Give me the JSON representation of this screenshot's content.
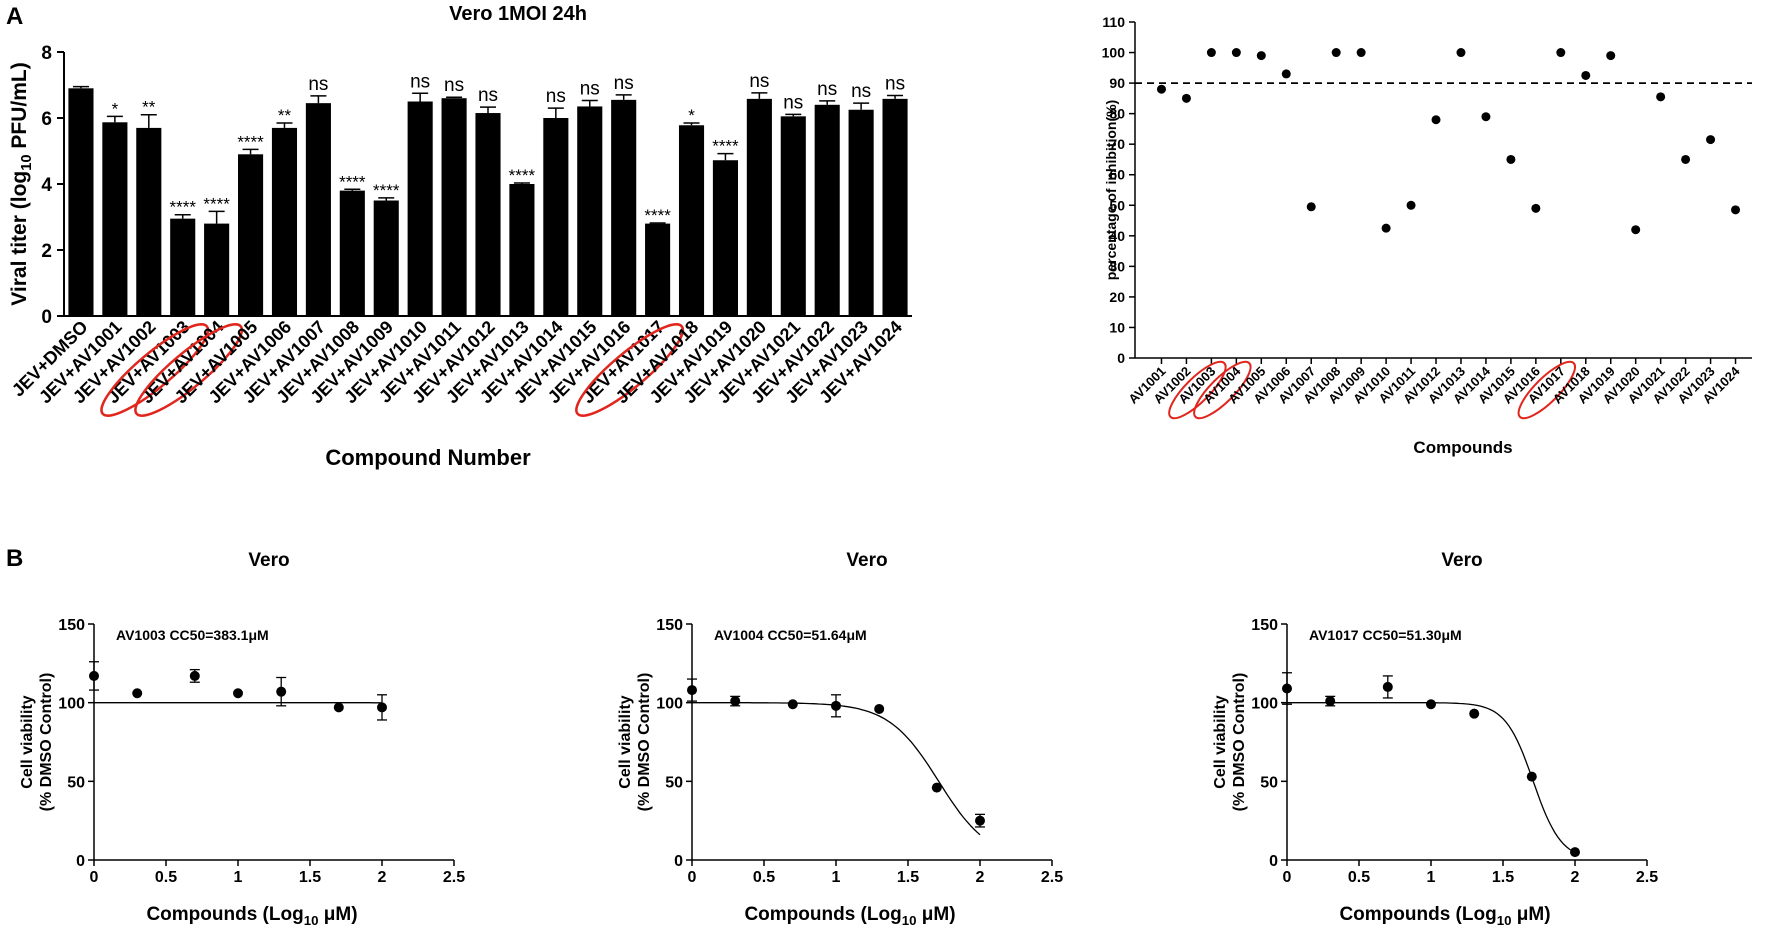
{
  "panel_labels": {
    "a": "A",
    "b": "B"
  },
  "colors": {
    "ink": "#000000",
    "highlight": "#e0261d",
    "bar": "#000000"
  },
  "chart_data": [
    {
      "id": "titer",
      "type": "bar",
      "title": "Vero  1MOI  24h",
      "xlabel": "Compound Number",
      "ylabel_main": "Viral titer (log",
      "ylabel_sub": "10",
      "ylabel_tail": " PFU/mL)",
      "ylim": [
        0,
        8
      ],
      "yticks": [
        0,
        2,
        4,
        6,
        8
      ],
      "categories": [
        "JEV+DMSO",
        "JEV+AV1001",
        "JEV+AV1002",
        "JEV+AV1003",
        "JEV+AV1004",
        "JEV+AV1005",
        "JEV+AV1006",
        "JEV+AV1007",
        "JEV+AV1008",
        "JEV+AV1009",
        "JEV+AV1010",
        "JEV+AV1011",
        "JEV+AV1012",
        "JEV+AV1013",
        "JEV+AV1014",
        "JEV+AV1015",
        "JEV+AV1016",
        "JEV+AV1017",
        "JEV+AV1018",
        "JEV+AV1019",
        "JEV+AV1020",
        "JEV+AV1021",
        "JEV+AV1022",
        "JEV+AV1023",
        "JEV+AV1024"
      ],
      "values": [
        6.9,
        5.87,
        5.7,
        2.95,
        2.8,
        4.9,
        5.7,
        6.45,
        3.8,
        3.5,
        6.5,
        6.6,
        6.15,
        4.0,
        6.0,
        6.35,
        6.55,
        2.8,
        5.78,
        4.72,
        6.58,
        6.05,
        6.4,
        6.25,
        6.58
      ],
      "errors": [
        0.05,
        0.18,
        0.4,
        0.12,
        0.37,
        0.15,
        0.15,
        0.22,
        0.04,
        0.08,
        0.25,
        0.03,
        0.18,
        0.03,
        0.3,
        0.18,
        0.15,
        0.02,
        0.07,
        0.2,
        0.18,
        0.06,
        0.12,
        0.2,
        0.1
      ],
      "significance": [
        "",
        "*",
        "**",
        "****",
        "****",
        "****",
        "**",
        "ns",
        "****",
        "****",
        "ns",
        "ns",
        "ns",
        "****",
        "ns",
        "ns",
        "ns",
        "****",
        "*",
        "****",
        "ns",
        "ns",
        "ns",
        "ns",
        "ns"
      ],
      "highlighted": [
        "JEV+AV1003",
        "JEV+AV1004",
        "JEV+AV1017"
      ]
    },
    {
      "id": "inhibition",
      "type": "scatter",
      "title": "",
      "xlabel": "Compounds",
      "ylabel": "percentage of inhibition(%)",
      "ylim": [
        0,
        110
      ],
      "yticks": [
        0,
        10,
        20,
        30,
        40,
        50,
        60,
        70,
        80,
        90,
        100,
        110
      ],
      "threshold": 90,
      "categories": [
        "AV1001",
        "AV1002",
        "AV1003",
        "AV1004",
        "AV1005",
        "AV1006",
        "AV1007",
        "AV1008",
        "AV1009",
        "AV1010",
        "AV1011",
        "AV1012",
        "AV1013",
        "AV1014",
        "AV1015",
        "AV1016",
        "AV1017",
        "AV1018",
        "AV1019",
        "AV1020",
        "AV1021",
        "AV1022",
        "AV1023",
        "AV1024"
      ],
      "values": [
        88,
        85,
        100,
        100,
        99,
        93,
        49.5,
        100,
        100,
        42.5,
        50,
        78,
        100,
        79,
        65,
        49,
        100,
        92.5,
        99,
        42,
        85.5,
        65,
        71.5,
        48.5
      ],
      "highlighted": [
        "AV1003",
        "AV1004",
        "AV1017"
      ]
    },
    {
      "id": "cc50-av1003",
      "type": "scatter",
      "title": "Vero",
      "annotation": "AV1003 CC50=383.1μM",
      "xlabel_main": "Compounds (Log",
      "xlabel_sub": "10",
      "xlabel_tail": " μM)",
      "ylabel_line1": "Cell viability",
      "ylabel_line2": "(% DMSO Control)",
      "xlim": [
        0,
        2.5
      ],
      "ylim": [
        0,
        150
      ],
      "xticks": [
        0,
        0.5,
        1,
        1.5,
        2,
        2.5
      ],
      "yticks": [
        0,
        50,
        100,
        150
      ],
      "x": [
        0,
        0.3,
        0.7,
        1.0,
        1.3,
        1.7,
        2.0
      ],
      "y": [
        117,
        106,
        117,
        106,
        107,
        97,
        97
      ],
      "errors": [
        9,
        0,
        4,
        0,
        9,
        0,
        8
      ],
      "fit": {
        "top": 100,
        "bottom": 0,
        "logcc50": 2.583,
        "hill": 5
      }
    },
    {
      "id": "cc50-av1004",
      "type": "scatter",
      "title": "Vero",
      "annotation": "AV1004 CC50=51.64μM",
      "xlabel_main": "Compounds (Log",
      "xlabel_sub": "10",
      "xlabel_tail": " μM)",
      "ylabel_line1": "Cell viability",
      "ylabel_line2": "(% DMSO Control)",
      "xlim": [
        0,
        2.5
      ],
      "ylim": [
        0,
        150
      ],
      "xticks": [
        0,
        0.5,
        1,
        1.5,
        2,
        2.5
      ],
      "yticks": [
        0,
        50,
        100,
        150
      ],
      "x": [
        0,
        0.3,
        0.7,
        1.0,
        1.3,
        1.7,
        2.0
      ],
      "y": [
        108,
        101,
        99,
        98,
        96,
        46,
        25
      ],
      "errors": [
        7,
        3,
        0,
        7,
        0,
        0,
        4
      ],
      "fit": {
        "top": 100,
        "bottom": 0,
        "logcc50": 1.713,
        "hill": 2.5
      }
    },
    {
      "id": "cc50-av1017",
      "type": "scatter",
      "title": "Vero",
      "annotation": "AV1017 CC50=51.30μM",
      "xlabel_main": "Compounds (Log",
      "xlabel_sub": "10",
      "xlabel_tail": " μM)",
      "ylabel_line1": "Cell viability",
      "ylabel_line2": "(% DMSO Control)",
      "xlim": [
        0,
        2.5
      ],
      "ylim": [
        0,
        150
      ],
      "xticks": [
        0,
        0.5,
        1,
        1.5,
        2,
        2.5
      ],
      "yticks": [
        0,
        50,
        100,
        150
      ],
      "x": [
        0,
        0.3,
        0.7,
        1.0,
        1.3,
        1.7,
        2.0
      ],
      "y": [
        109,
        101,
        110,
        99,
        93,
        53,
        5
      ],
      "errors": [
        10,
        3,
        7,
        0,
        0,
        0,
        0
      ],
      "fit": {
        "top": 100,
        "bottom": 0,
        "logcc50": 1.71,
        "hill": 4.5
      }
    }
  ]
}
